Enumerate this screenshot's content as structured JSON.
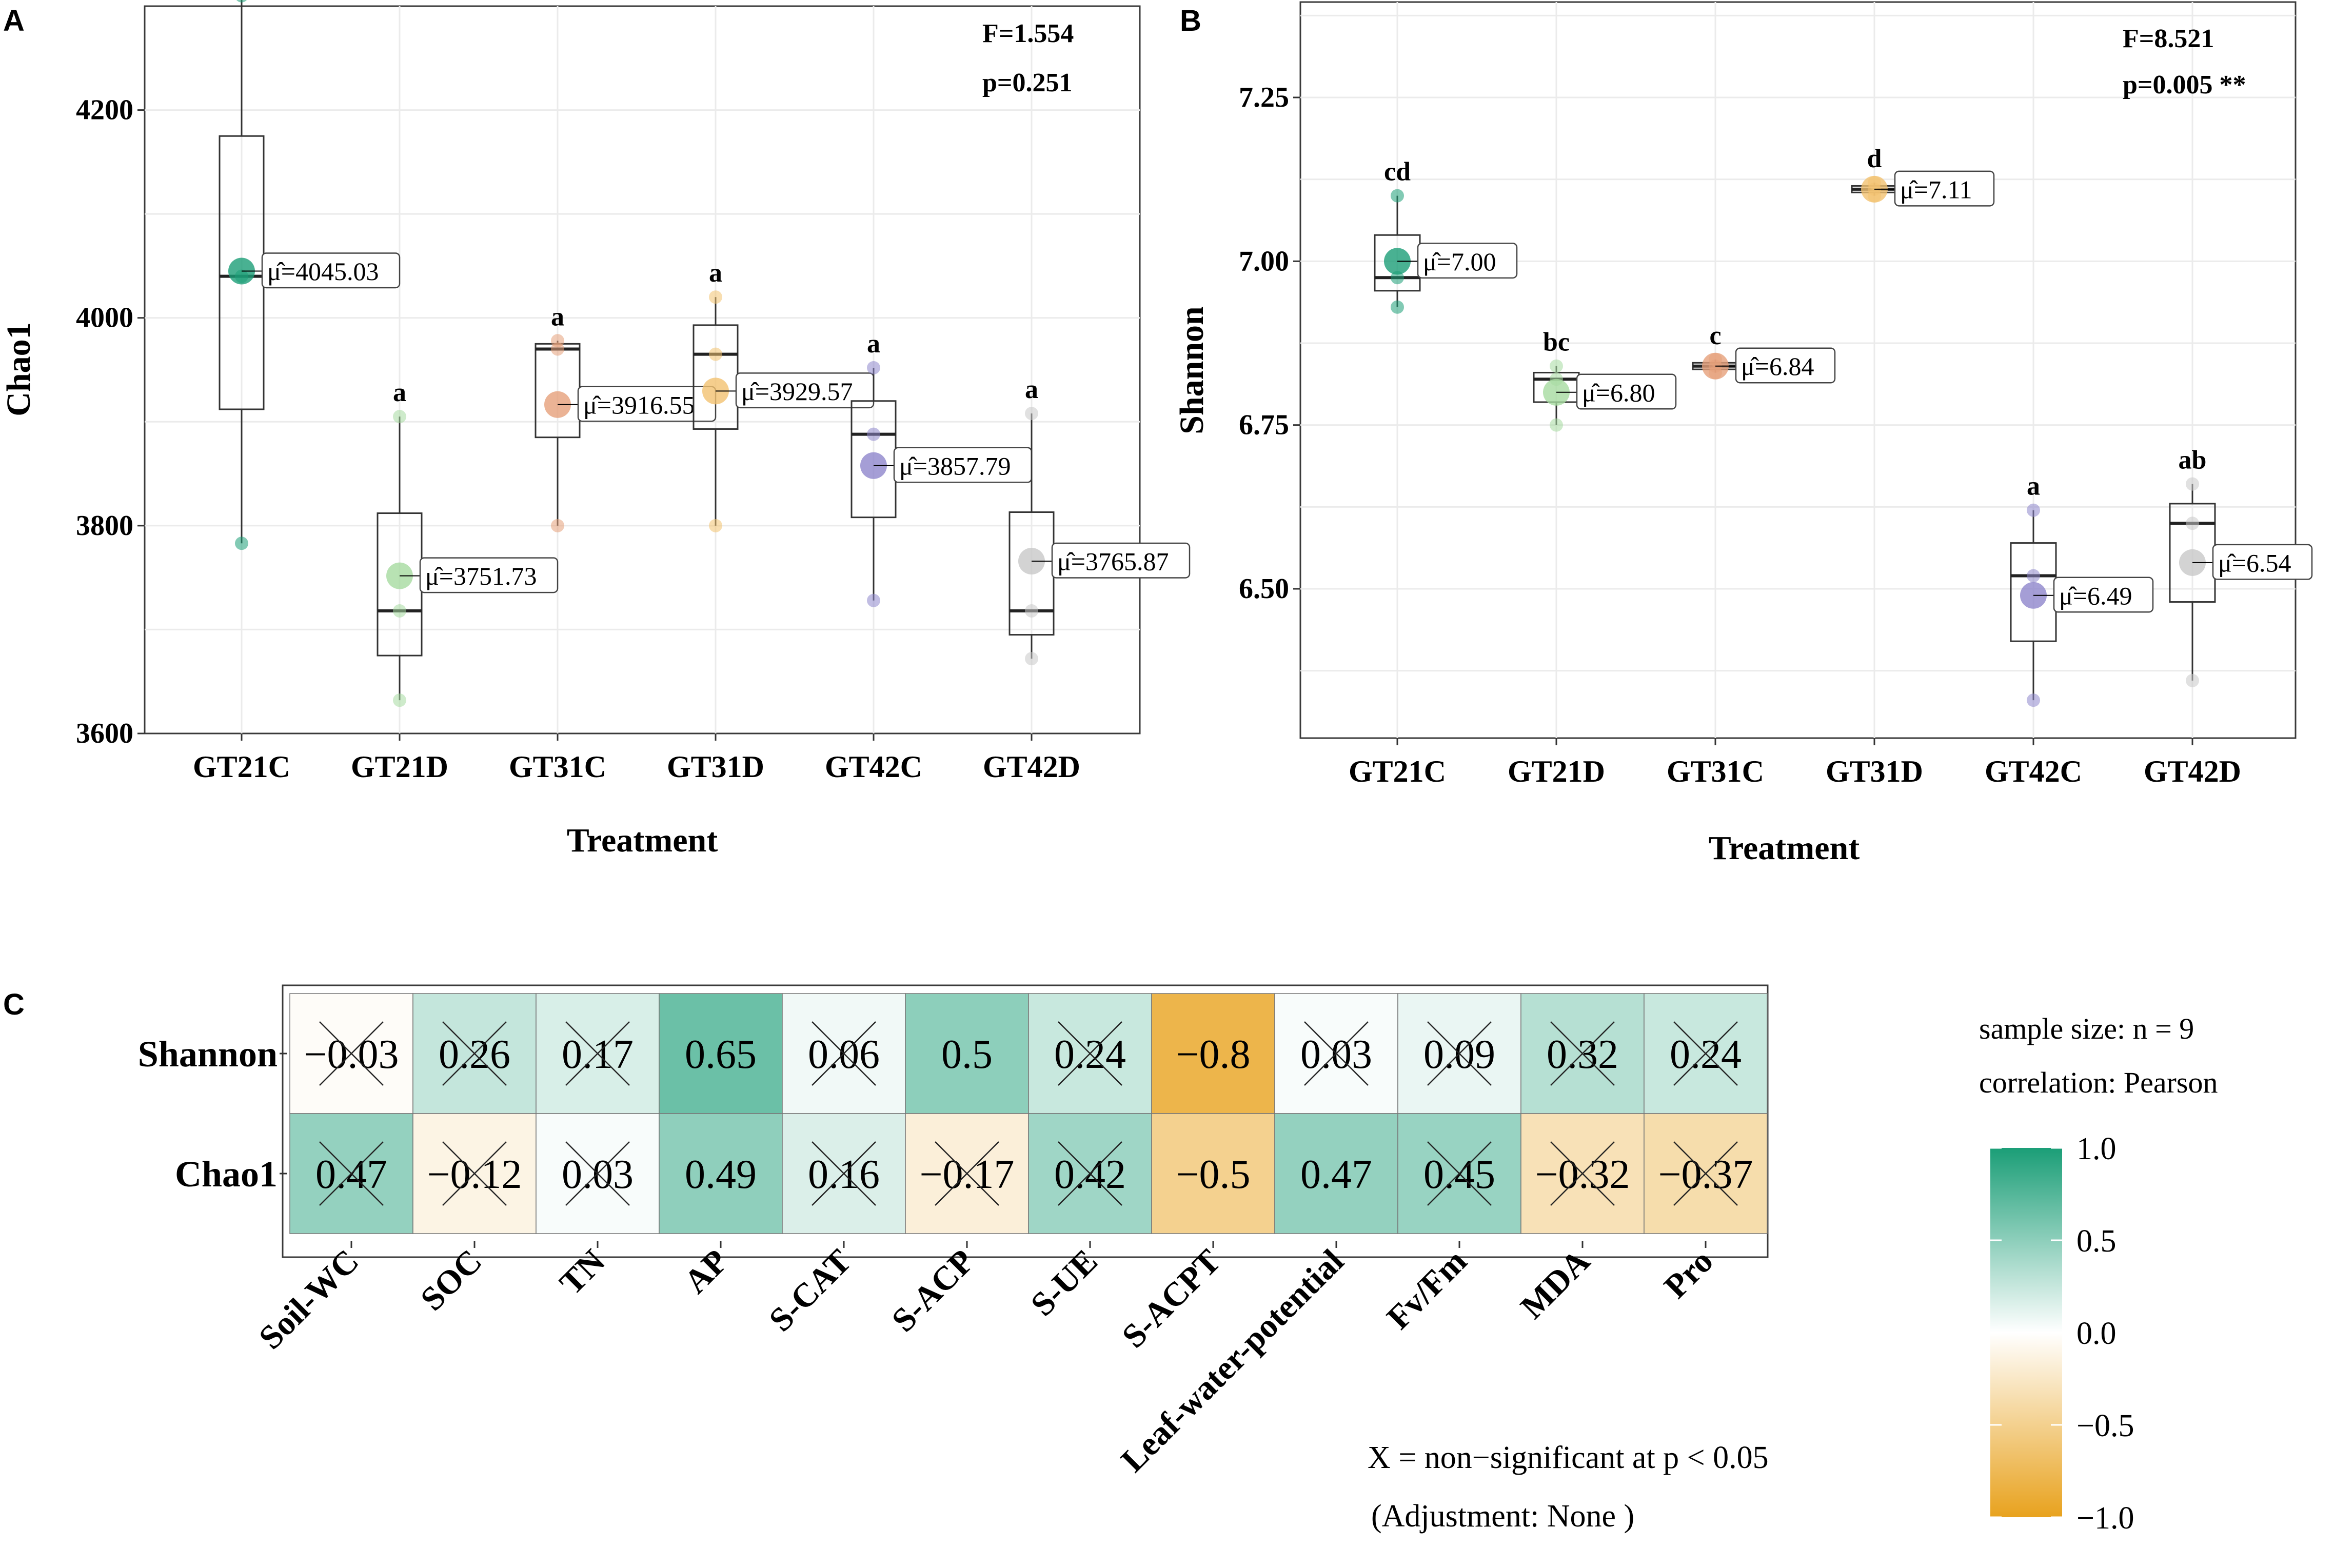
{
  "figure": {
    "panels": [
      {
        "letter": "A"
      },
      {
        "letter": "B"
      },
      {
        "letter": "C"
      }
    ]
  },
  "chart_data": [
    {
      "type": "box",
      "panel": "A",
      "title": "",
      "xlabel": "Treatment",
      "ylabel": "Chao1",
      "ylim": [
        3600,
        4300
      ],
      "yticks": [
        3600,
        3800,
        4000,
        4200
      ],
      "ytick_labels": [
        "3600",
        "3800",
        "4000",
        "4200"
      ],
      "categories": [
        "GT21C",
        "GT21D",
        "GT31C",
        "GT31D",
        "GT42C",
        "GT42D"
      ],
      "colors": [
        "#1b9e77",
        "#a6dba0",
        "#e6a07a",
        "#f2c270",
        "#8e86cc",
        "#c8c8c8"
      ],
      "stats": {
        "F": "F=1.554",
        "p": "p=0.251"
      },
      "boxes": [
        {
          "q1": 3912,
          "median": 4040,
          "q3": 4175,
          "min": 3783,
          "max": 4310,
          "mean": 4045.03,
          "mean_label": "μ̂=4045.03",
          "letter": "a",
          "points": [
            4310,
            4040,
            3783
          ]
        },
        {
          "q1": 3675,
          "median": 3718,
          "q3": 3812,
          "min": 3632,
          "max": 3905,
          "mean": 3751.73,
          "mean_label": "μ̂=3751.73",
          "letter": "a",
          "points": [
            3905,
            3718,
            3632
          ]
        },
        {
          "q1": 3885,
          "median": 3970,
          "q3": 3975,
          "min": 3800,
          "max": 3978,
          "mean": 3916.55,
          "mean_label": "μ̂=3916.55",
          "letter": "a",
          "points": [
            3978,
            3970,
            3800
          ]
        },
        {
          "q1": 3893,
          "median": 3965,
          "q3": 3993,
          "min": 3800,
          "max": 4020,
          "mean": 3929.57,
          "mean_label": "μ̂=3929.57",
          "letter": "a",
          "points": [
            4020,
            3965,
            3800
          ]
        },
        {
          "q1": 3808,
          "median": 3888,
          "q3": 3920,
          "min": 3728,
          "max": 3952,
          "mean": 3857.79,
          "mean_label": "μ̂=3857.79",
          "letter": "a",
          "points": [
            3952,
            3888,
            3728
          ]
        },
        {
          "q1": 3695,
          "median": 3718,
          "q3": 3813,
          "min": 3672,
          "max": 3908,
          "mean": 3765.87,
          "mean_label": "μ̂=3765.87",
          "letter": "a",
          "points": [
            3908,
            3718,
            3672
          ]
        }
      ]
    },
    {
      "type": "box",
      "panel": "B",
      "title": "",
      "xlabel": "Treatment",
      "ylabel": "Shannon",
      "ylim": [
        6.32,
        7.37
      ],
      "yticks": [
        6.5,
        6.75,
        7.0,
        7.25
      ],
      "ytick_labels": [
        "6.50",
        "6.75",
        "7.00",
        "7.25"
      ],
      "categories": [
        "GT21C",
        "GT21D",
        "GT31C",
        "GT31D",
        "GT42C",
        "GT42D"
      ],
      "colors": [
        "#1b9e77",
        "#a6dba0",
        "#e6a07a",
        "#f2c270",
        "#8e86cc",
        "#c8c8c8"
      ],
      "stats": {
        "F": "F=8.521",
        "p": "p=0.005 **"
      },
      "boxes": [
        {
          "q1": 6.955,
          "median": 6.975,
          "q3": 7.04,
          "min": 6.93,
          "max": 7.1,
          "mean": 7.0,
          "mean_label": "μ̂=7.00",
          "letter": "cd",
          "points": [
            7.1,
            6.975,
            6.93
          ]
        },
        {
          "q1": 6.785,
          "median": 6.82,
          "q3": 6.83,
          "min": 6.75,
          "max": 6.84,
          "mean": 6.8,
          "mean_label": "μ̂=6.80",
          "letter": "bc",
          "points": [
            6.84,
            6.82,
            6.75
          ]
        },
        {
          "q1": 6.835,
          "median": 6.84,
          "q3": 6.845,
          "min": 6.83,
          "max": 6.85,
          "mean": 6.84,
          "mean_label": "μ̂=6.84",
          "letter": "c",
          "points": [
            6.85,
            6.84,
            6.83
          ]
        },
        {
          "q1": 7.105,
          "median": 7.11,
          "q3": 7.115,
          "min": 7.1,
          "max": 7.12,
          "mean": 7.11,
          "mean_label": "μ̂=7.11",
          "letter": "d",
          "points": [
            7.12,
            7.11,
            7.1
          ]
        },
        {
          "q1": 6.42,
          "median": 6.52,
          "q3": 6.57,
          "min": 6.33,
          "max": 6.62,
          "mean": 6.49,
          "mean_label": "μ̂=6.49",
          "letter": "a",
          "points": [
            6.62,
            6.52,
            6.33
          ]
        },
        {
          "q1": 6.48,
          "median": 6.6,
          "q3": 6.63,
          "min": 6.36,
          "max": 6.66,
          "mean": 6.54,
          "mean_label": "μ̂=6.54",
          "letter": "ab",
          "points": [
            6.66,
            6.6,
            6.36
          ]
        }
      ]
    },
    {
      "type": "heatmap",
      "panel": "C",
      "title": "",
      "rows": [
        "Shannon",
        "Chao1"
      ],
      "columns": [
        "Soil-WC",
        "SOC",
        "TN",
        "AP",
        "S-CAT",
        "S-ACP",
        "S-UE",
        "S-ACPT",
        "Leaf-water-potential",
        "Fv/Fm",
        "MDA",
        "Pro"
      ],
      "values": [
        [
          -0.03,
          0.26,
          0.17,
          0.65,
          0.06,
          0.5,
          0.24,
          -0.8,
          0.03,
          0.09,
          0.32,
          0.24
        ],
        [
          0.47,
          -0.12,
          0.03,
          0.49,
          0.16,
          -0.17,
          0.42,
          -0.5,
          0.47,
          0.45,
          -0.32,
          -0.37
        ]
      ],
      "labels": [
        [
          "−0.03",
          "0.26",
          "0.17",
          "0.65",
          "0.06",
          "0.5",
          "0.24",
          "−0.8",
          "0.03",
          "0.09",
          "0.32",
          "0.24"
        ],
        [
          "0.47",
          "−0.12",
          "0.03",
          "0.49",
          "0.16",
          "−0.17",
          "0.42",
          "−0.5",
          "0.47",
          "0.45",
          "−0.32",
          "−0.37"
        ]
      ],
      "significant": [
        [
          false,
          false,
          false,
          true,
          false,
          true,
          false,
          true,
          false,
          false,
          false,
          false
        ],
        [
          false,
          false,
          false,
          true,
          false,
          false,
          false,
          true,
          true,
          false,
          false,
          false
        ]
      ],
      "color_scale": {
        "low": "#e8a21e",
        "mid": "#ffffff",
        "high": "#1b9e77",
        "range": [
          -1.0,
          1.0
        ]
      },
      "legend": {
        "ticks": [
          "1.0",
          "0.5",
          "0.0",
          "−0.5",
          "−1.0"
        ],
        "tick_values": [
          1.0,
          0.5,
          0.0,
          -0.5,
          -1.0
        ],
        "sample_size": "sample size:  n = 9",
        "correlation": "correlation:  Pearson",
        "note_line1": "X = non−significant at p < 0.05",
        "note_line2": "(Adjustment: None )"
      }
    }
  ]
}
